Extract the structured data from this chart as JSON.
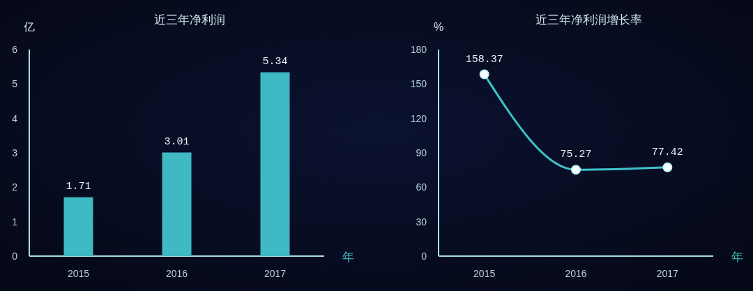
{
  "chart_data": [
    {
      "type": "bar",
      "title": "近三年净利润",
      "ylabel": "亿",
      "xlabel": "年",
      "categories": [
        "2015",
        "2016",
        "2017"
      ],
      "values": [
        1.71,
        3.01,
        5.34
      ],
      "color": "#3fb9c4",
      "ylim": [
        0,
        6
      ],
      "yticks": [
        0,
        1,
        2,
        3,
        4,
        5,
        6
      ],
      "data_labels": true,
      "grid": false
    },
    {
      "type": "line",
      "title": "近三年净利润增长率",
      "ylabel": "%",
      "xlabel": "年",
      "categories": [
        "2015",
        "2016",
        "2017"
      ],
      "values": [
        158.37,
        75.27,
        77.42
      ],
      "color": "#3ec3c9",
      "ylim": [
        0,
        180
      ],
      "yticks": [
        0,
        30,
        60,
        90,
        120,
        150,
        180
      ],
      "data_labels": true,
      "marker": "circle",
      "grid": false
    }
  ]
}
